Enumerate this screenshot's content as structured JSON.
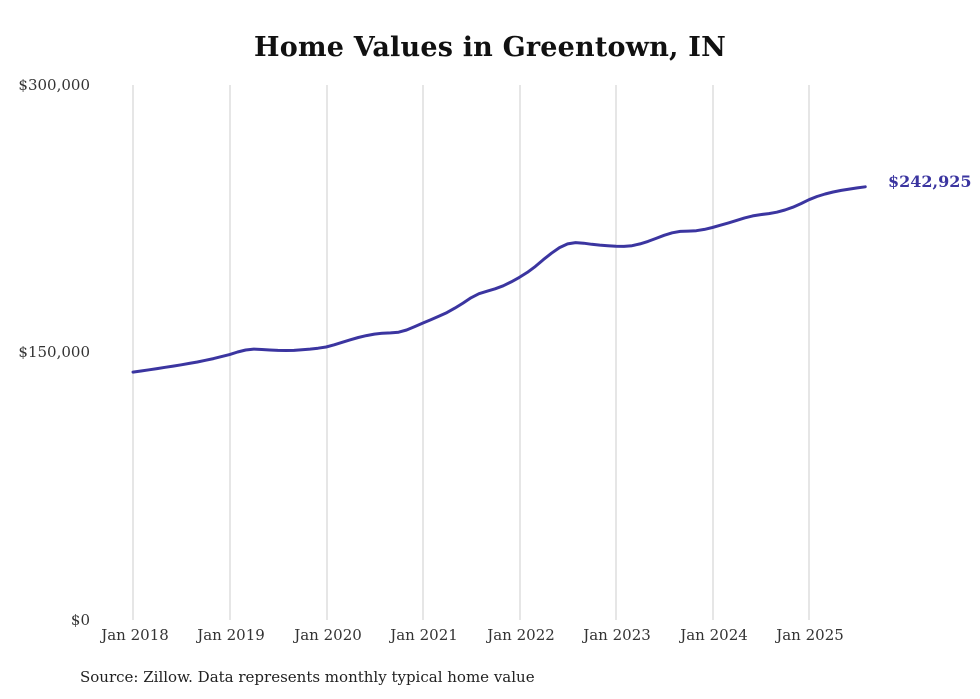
{
  "chart_data": {
    "type": "line",
    "title": "Home Values in Greentown, IN",
    "source_note": "Source: Zillow. Data represents monthly typical home value",
    "end_label": "$242,925",
    "line_color": "#3b35a0",
    "gridline_color": "#cccccc",
    "ylim": [
      0,
      300000
    ],
    "y_ticks": [
      {
        "label": "$0",
        "value": 0
      },
      {
        "label": "$150,000",
        "value": 150000
      },
      {
        "label": "$300,000",
        "value": 300000
      }
    ],
    "x_ticks": [
      "Jan 2018",
      "Jan 2019",
      "Jan 2020",
      "Jan 2021",
      "Jan 2022",
      "Jan 2023",
      "Jan 2024",
      "Jan 2025"
    ],
    "x_start_month": "2018-01",
    "x_end_month": "2025-08",
    "x_frequency": "monthly",
    "final_value": 242925,
    "values": [
      139000,
      139600,
      140300,
      141000,
      141700,
      142400,
      143100,
      143900,
      144700,
      145600,
      146600,
      147700,
      148800,
      150300,
      151400,
      151900,
      151700,
      151400,
      151200,
      151100,
      151200,
      151500,
      151900,
      152400,
      153100,
      154300,
      155700,
      157100,
      158400,
      159500,
      160300,
      160800,
      161000,
      161400,
      162600,
      164500,
      166500,
      168400,
      170300,
      172400,
      174900,
      177700,
      180700,
      183000,
      184400,
      185700,
      187400,
      189600,
      192100,
      194900,
      198300,
      202100,
      205700,
      208800,
      210900,
      211600,
      211300,
      210700,
      210200,
      209900,
      209600,
      209500,
      209900,
      210900,
      212300,
      214000,
      215700,
      217100,
      217900,
      218100,
      218300,
      219000,
      220100,
      221400,
      222700,
      224100,
      225500,
      226600,
      227300,
      227900,
      228700,
      229900,
      231500,
      233500,
      235700,
      237500,
      238900,
      240000,
      240900,
      241600,
      242300,
      242925
    ],
    "grid": "vertical-only",
    "legend": "none"
  }
}
